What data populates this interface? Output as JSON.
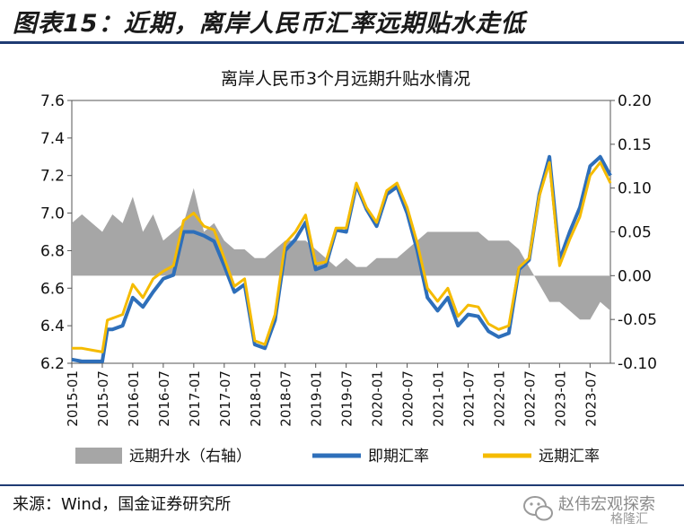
{
  "figure_title": "图表15：近期，离岸人民币汇率远期贴水走低",
  "source_note": "来源：Wind，国金证券研究所",
  "watermark": {
    "text": "赵伟宏观探索",
    "sub_text": "格隆汇"
  },
  "colors": {
    "spot": "#2e6fba",
    "forward": "#f5bb00",
    "premium": "#a6a6a6",
    "rule": "#1f3b73"
  },
  "chart_data": {
    "type": "line",
    "title": "离岸人民币3个月远期升贴水情况",
    "x_ticks": [
      "2015-01",
      "2015-07",
      "2016-01",
      "2016-07",
      "2017-01",
      "2017-07",
      "2018-01",
      "2018-07",
      "2019-01",
      "2019-07",
      "2020-01",
      "2020-07",
      "2021-01",
      "2021-07",
      "2022-01",
      "2022-07",
      "2023-01",
      "2023-07"
    ],
    "left_axis": {
      "min": 6.2,
      "max": 7.6,
      "ticks": [
        "6.2",
        "6.4",
        "6.6",
        "6.8",
        "7.0",
        "7.2",
        "7.4",
        "7.6"
      ]
    },
    "right_axis": {
      "min": -0.1,
      "max": 0.2,
      "ticks": [
        "-0.10",
        "-0.05",
        "0.00",
        "0.05",
        "0.10",
        "0.15",
        "0.20"
      ]
    },
    "legend": [
      "远期升水（右轴）",
      "即期汇率",
      "远期汇率"
    ],
    "x": [
      "2015-01",
      "2015-03",
      "2015-05",
      "2015-07",
      "2015-08",
      "2015-09",
      "2015-11",
      "2016-01",
      "2016-03",
      "2016-05",
      "2016-07",
      "2016-09",
      "2016-11",
      "2017-01",
      "2017-03",
      "2017-05",
      "2017-07",
      "2017-09",
      "2017-11",
      "2018-01",
      "2018-03",
      "2018-05",
      "2018-07",
      "2018-09",
      "2018-11",
      "2019-01",
      "2019-03",
      "2019-05",
      "2019-07",
      "2019-09",
      "2019-11",
      "2020-01",
      "2020-03",
      "2020-05",
      "2020-07",
      "2020-09",
      "2020-11",
      "2021-01",
      "2021-03",
      "2021-05",
      "2021-07",
      "2021-09",
      "2021-11",
      "2022-01",
      "2022-03",
      "2022-05",
      "2022-07",
      "2022-09",
      "2022-11",
      "2023-01",
      "2023-03",
      "2023-05",
      "2023-07",
      "2023-09",
      "2023-11"
    ],
    "series": [
      {
        "name": "远期升水（右轴）",
        "axis": "right",
        "values": [
          0.06,
          0.07,
          0.06,
          0.05,
          0.06,
          0.07,
          0.06,
          0.09,
          0.05,
          0.07,
          0.04,
          0.05,
          0.06,
          0.1,
          0.05,
          0.06,
          0.04,
          0.03,
          0.03,
          0.02,
          0.02,
          0.03,
          0.04,
          0.04,
          0.04,
          0.03,
          0.02,
          0.01,
          0.02,
          0.01,
          0.01,
          0.02,
          0.02,
          0.02,
          0.03,
          0.04,
          0.05,
          0.05,
          0.05,
          0.05,
          0.05,
          0.05,
          0.04,
          0.04,
          0.04,
          0.03,
          0.01,
          -0.01,
          -0.03,
          -0.03,
          -0.04,
          -0.05,
          -0.05,
          -0.03,
          -0.04
        ]
      },
      {
        "name": "即期汇率",
        "axis": "left",
        "values": [
          6.22,
          6.21,
          6.21,
          6.21,
          6.38,
          6.38,
          6.4,
          6.55,
          6.5,
          6.58,
          6.65,
          6.67,
          6.9,
          6.9,
          6.88,
          6.85,
          6.72,
          6.58,
          6.62,
          6.3,
          6.28,
          6.43,
          6.8,
          6.86,
          6.95,
          6.7,
          6.72,
          6.91,
          6.9,
          7.15,
          7.02,
          6.93,
          7.1,
          7.14,
          7.0,
          6.8,
          6.55,
          6.48,
          6.55,
          6.4,
          6.46,
          6.45,
          6.37,
          6.34,
          6.36,
          6.7,
          6.75,
          7.1,
          7.3,
          6.75,
          6.9,
          7.03,
          7.25,
          7.3,
          7.2
        ]
      },
      {
        "name": "远期汇率",
        "axis": "left",
        "values": [
          6.28,
          6.28,
          6.27,
          6.26,
          6.43,
          6.44,
          6.46,
          6.62,
          6.55,
          6.65,
          6.69,
          6.72,
          6.96,
          7.0,
          6.93,
          6.91,
          6.76,
          6.61,
          6.65,
          6.32,
          6.3,
          6.46,
          6.84,
          6.9,
          6.99,
          6.73,
          6.74,
          6.92,
          6.92,
          7.16,
          7.03,
          6.95,
          7.12,
          7.16,
          7.03,
          6.84,
          6.6,
          6.53,
          6.6,
          6.45,
          6.51,
          6.5,
          6.41,
          6.38,
          6.4,
          6.71,
          6.76,
          7.09,
          7.27,
          6.72,
          6.86,
          6.98,
          7.2,
          7.27,
          7.16
        ]
      }
    ]
  }
}
